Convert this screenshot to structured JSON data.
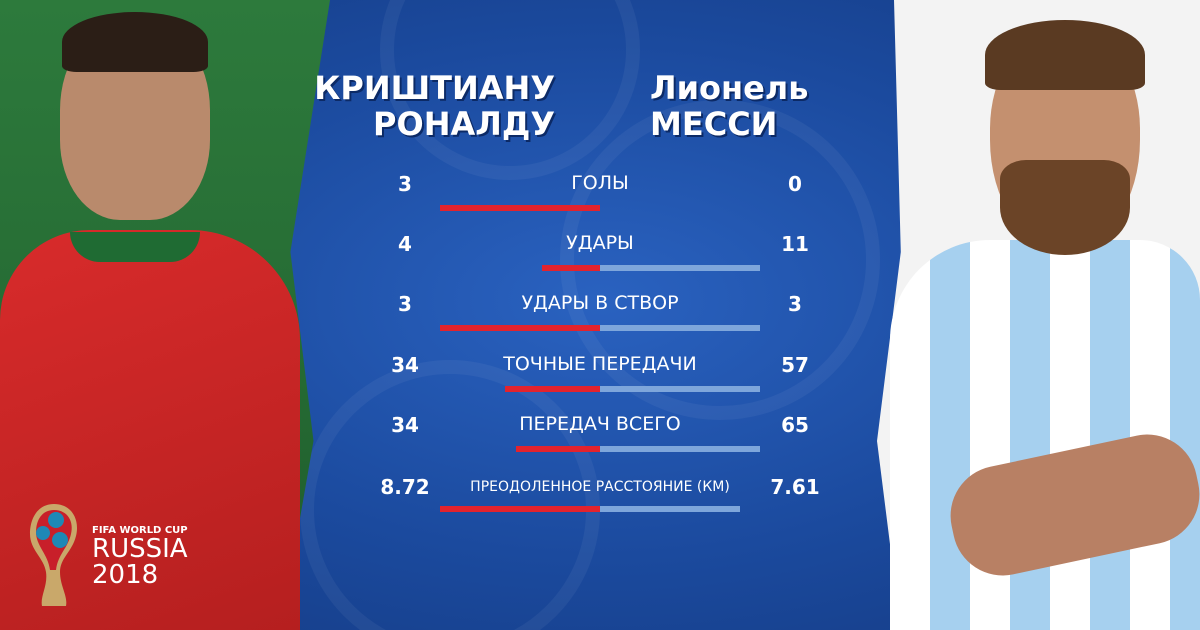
{
  "players": {
    "left": {
      "first": "КРИШТИАНУ",
      "last": "РОНАЛДУ"
    },
    "right": {
      "first": "Лионель",
      "last": "МЕССИ"
    }
  },
  "logo": {
    "line1": "FIFA WORLD CUP",
    "line2": "RUSSIA",
    "line3": "2018"
  },
  "colors": {
    "left_bar": "#e3232d",
    "right_bar": "#7ea6db",
    "background": "#1b4fa6"
  },
  "chart_data": {
    "type": "bar",
    "orientation": "diverging-horizontal",
    "categories": [
      "ГОЛЫ",
      "УДАРЫ",
      "УДАРЫ В СТВОР",
      "ТОЧНЫЕ ПЕРЕДАЧИ",
      "ПЕРЕДАЧ ВСЕГО",
      "ПРЕОДОЛЕННОЕ РАССТОЯНИЕ (КМ)"
    ],
    "labels_left": [
      "3",
      "4",
      "3",
      "34",
      "34",
      "8.72"
    ],
    "labels_right": [
      "0",
      "11",
      "3",
      "57",
      "65",
      "7.61"
    ],
    "series": [
      {
        "name": "КРИШТИАНУ РОНАЛДУ",
        "values": [
          3,
          4,
          3,
          34,
          34,
          8.72
        ]
      },
      {
        "name": "Лионель МЕССИ",
        "values": [
          0,
          11,
          3,
          57,
          65,
          7.61
        ]
      }
    ]
  }
}
